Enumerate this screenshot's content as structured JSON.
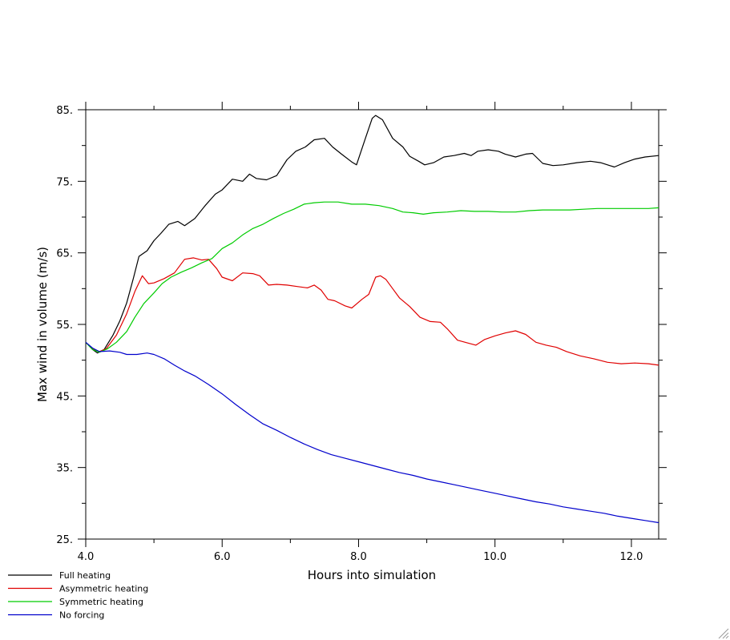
{
  "chart_data": {
    "type": "line",
    "title": "",
    "xlabel": "Hours into simulation",
    "ylabel": "Max wind in volume (m/s)",
    "xlim": [
      4.0,
      12.4
    ],
    "ylim": [
      25,
      85
    ],
    "x_ticks": [
      {
        "value": 4.0,
        "label": "4.0"
      },
      {
        "value": 6.0,
        "label": "6.0"
      },
      {
        "value": 8.0,
        "label": "8.0"
      },
      {
        "value": 10.0,
        "label": "10.0"
      },
      {
        "value": 12.0,
        "label": "12.0"
      }
    ],
    "y_ticks": [
      {
        "value": 25,
        "label": "25."
      },
      {
        "value": 35,
        "label": "35."
      },
      {
        "value": 45,
        "label": "45."
      },
      {
        "value": 55,
        "label": "55."
      },
      {
        "value": 65,
        "label": "65."
      },
      {
        "value": 75,
        "label": "75."
      },
      {
        "value": 85,
        "label": "85."
      }
    ],
    "grid": false,
    "legend_position": "bottom-left",
    "series": [
      {
        "name": "Full heating",
        "color": "#000000",
        "points": [
          [
            4.0,
            52.5
          ],
          [
            4.1,
            51.5
          ],
          [
            4.17,
            51.0
          ],
          [
            4.27,
            51.5
          ],
          [
            4.4,
            53.5
          ],
          [
            4.5,
            55.5
          ],
          [
            4.6,
            58.0
          ],
          [
            4.7,
            61.5
          ],
          [
            4.78,
            64.5
          ],
          [
            4.9,
            65.3
          ],
          [
            5.0,
            66.7
          ],
          [
            5.1,
            67.7
          ],
          [
            5.22,
            69.0
          ],
          [
            5.35,
            69.4
          ],
          [
            5.45,
            68.8
          ],
          [
            5.6,
            69.8
          ],
          [
            5.75,
            71.6
          ],
          [
            5.9,
            73.2
          ],
          [
            6.0,
            73.8
          ],
          [
            6.15,
            75.3
          ],
          [
            6.3,
            75.0
          ],
          [
            6.4,
            76.0
          ],
          [
            6.5,
            75.4
          ],
          [
            6.65,
            75.2
          ],
          [
            6.8,
            75.8
          ],
          [
            6.95,
            78.0
          ],
          [
            7.08,
            79.2
          ],
          [
            7.22,
            79.8
          ],
          [
            7.35,
            80.8
          ],
          [
            7.5,
            81.0
          ],
          [
            7.62,
            79.8
          ],
          [
            7.75,
            78.8
          ],
          [
            7.9,
            77.7
          ],
          [
            7.97,
            77.3
          ],
          [
            8.1,
            81.0
          ],
          [
            8.2,
            83.8
          ],
          [
            8.25,
            84.2
          ],
          [
            8.35,
            83.6
          ],
          [
            8.5,
            81.0
          ],
          [
            8.65,
            79.8
          ],
          [
            8.75,
            78.5
          ],
          [
            8.88,
            77.8
          ],
          [
            8.97,
            77.3
          ],
          [
            9.1,
            77.6
          ],
          [
            9.25,
            78.4
          ],
          [
            9.4,
            78.6
          ],
          [
            9.55,
            78.9
          ],
          [
            9.65,
            78.6
          ],
          [
            9.75,
            79.2
          ],
          [
            9.9,
            79.4
          ],
          [
            10.05,
            79.2
          ],
          [
            10.15,
            78.8
          ],
          [
            10.3,
            78.4
          ],
          [
            10.45,
            78.8
          ],
          [
            10.55,
            78.9
          ],
          [
            10.7,
            77.5
          ],
          [
            10.85,
            77.2
          ],
          [
            11.0,
            77.3
          ],
          [
            11.2,
            77.6
          ],
          [
            11.4,
            77.8
          ],
          [
            11.55,
            77.6
          ],
          [
            11.75,
            77.0
          ],
          [
            11.9,
            77.6
          ],
          [
            12.05,
            78.1
          ],
          [
            12.2,
            78.4
          ],
          [
            12.4,
            78.6
          ]
        ]
      },
      {
        "name": "Asymmetric heating",
        "color": "#e00000",
        "points": [
          [
            4.0,
            52.5
          ],
          [
            4.1,
            51.6
          ],
          [
            4.2,
            51.2
          ],
          [
            4.3,
            51.6
          ],
          [
            4.45,
            53.5
          ],
          [
            4.6,
            56.5
          ],
          [
            4.72,
            59.6
          ],
          [
            4.83,
            61.8
          ],
          [
            4.92,
            60.7
          ],
          [
            5.0,
            60.8
          ],
          [
            5.15,
            61.4
          ],
          [
            5.3,
            62.2
          ],
          [
            5.45,
            64.1
          ],
          [
            5.58,
            64.3
          ],
          [
            5.7,
            64.0
          ],
          [
            5.8,
            64.1
          ],
          [
            5.92,
            62.8
          ],
          [
            6.0,
            61.6
          ],
          [
            6.15,
            61.1
          ],
          [
            6.3,
            62.2
          ],
          [
            6.45,
            62.1
          ],
          [
            6.55,
            61.8
          ],
          [
            6.68,
            60.5
          ],
          [
            6.8,
            60.6
          ],
          [
            6.95,
            60.5
          ],
          [
            7.1,
            60.3
          ],
          [
            7.25,
            60.1
          ],
          [
            7.35,
            60.5
          ],
          [
            7.45,
            59.8
          ],
          [
            7.55,
            58.5
          ],
          [
            7.65,
            58.3
          ],
          [
            7.8,
            57.6
          ],
          [
            7.9,
            57.3
          ],
          [
            8.05,
            58.5
          ],
          [
            8.15,
            59.2
          ],
          [
            8.25,
            61.6
          ],
          [
            8.32,
            61.8
          ],
          [
            8.4,
            61.3
          ],
          [
            8.5,
            60.0
          ],
          [
            8.6,
            58.7
          ],
          [
            8.75,
            57.5
          ],
          [
            8.9,
            56.0
          ],
          [
            9.05,
            55.4
          ],
          [
            9.2,
            55.3
          ],
          [
            9.3,
            54.4
          ],
          [
            9.45,
            52.8
          ],
          [
            9.6,
            52.4
          ],
          [
            9.72,
            52.1
          ],
          [
            9.85,
            52.9
          ],
          [
            10.0,
            53.4
          ],
          [
            10.15,
            53.8
          ],
          [
            10.3,
            54.1
          ],
          [
            10.45,
            53.6
          ],
          [
            10.6,
            52.5
          ],
          [
            10.75,
            52.1
          ],
          [
            10.9,
            51.8
          ],
          [
            11.05,
            51.2
          ],
          [
            11.25,
            50.6
          ],
          [
            11.45,
            50.2
          ],
          [
            11.65,
            49.7
          ],
          [
            11.85,
            49.5
          ],
          [
            12.05,
            49.6
          ],
          [
            12.25,
            49.5
          ],
          [
            12.4,
            49.3
          ]
        ]
      },
      {
        "name": "Symmetric heating",
        "color": "#00cc00",
        "points": [
          [
            4.0,
            52.5
          ],
          [
            4.1,
            51.5
          ],
          [
            4.2,
            51.1
          ],
          [
            4.32,
            51.6
          ],
          [
            4.45,
            52.5
          ],
          [
            4.6,
            54.0
          ],
          [
            4.72,
            56.0
          ],
          [
            4.85,
            57.9
          ],
          [
            5.0,
            59.4
          ],
          [
            5.12,
            60.7
          ],
          [
            5.25,
            61.6
          ],
          [
            5.4,
            62.3
          ],
          [
            5.55,
            62.9
          ],
          [
            5.7,
            63.6
          ],
          [
            5.85,
            64.2
          ],
          [
            6.0,
            65.6
          ],
          [
            6.15,
            66.4
          ],
          [
            6.3,
            67.5
          ],
          [
            6.45,
            68.4
          ],
          [
            6.6,
            69.0
          ],
          [
            6.75,
            69.8
          ],
          [
            6.9,
            70.5
          ],
          [
            7.05,
            71.1
          ],
          [
            7.2,
            71.8
          ],
          [
            7.35,
            72.0
          ],
          [
            7.5,
            72.1
          ],
          [
            7.7,
            72.1
          ],
          [
            7.9,
            71.8
          ],
          [
            8.1,
            71.8
          ],
          [
            8.3,
            71.6
          ],
          [
            8.5,
            71.2
          ],
          [
            8.65,
            70.7
          ],
          [
            8.8,
            70.6
          ],
          [
            8.95,
            70.4
          ],
          [
            9.1,
            70.6
          ],
          [
            9.3,
            70.7
          ],
          [
            9.5,
            70.9
          ],
          [
            9.7,
            70.8
          ],
          [
            9.9,
            70.8
          ],
          [
            10.1,
            70.7
          ],
          [
            10.3,
            70.7
          ],
          [
            10.5,
            70.9
          ],
          [
            10.7,
            71.0
          ],
          [
            10.9,
            71.0
          ],
          [
            11.1,
            71.0
          ],
          [
            11.3,
            71.1
          ],
          [
            11.5,
            71.2
          ],
          [
            11.7,
            71.2
          ],
          [
            11.9,
            71.2
          ],
          [
            12.1,
            71.2
          ],
          [
            12.25,
            71.2
          ],
          [
            12.4,
            71.3
          ]
        ]
      },
      {
        "name": "No forcing",
        "color": "#0000cc",
        "points": [
          [
            4.0,
            52.5
          ],
          [
            4.1,
            51.7
          ],
          [
            4.2,
            51.2
          ],
          [
            4.35,
            51.3
          ],
          [
            4.5,
            51.1
          ],
          [
            4.6,
            50.8
          ],
          [
            4.75,
            50.8
          ],
          [
            4.9,
            51.0
          ],
          [
            5.0,
            50.8
          ],
          [
            5.15,
            50.2
          ],
          [
            5.3,
            49.3
          ],
          [
            5.45,
            48.5
          ],
          [
            5.6,
            47.8
          ],
          [
            5.8,
            46.6
          ],
          [
            6.0,
            45.3
          ],
          [
            6.2,
            43.8
          ],
          [
            6.4,
            42.4
          ],
          [
            6.6,
            41.1
          ],
          [
            6.8,
            40.2
          ],
          [
            7.0,
            39.2
          ],
          [
            7.2,
            38.3
          ],
          [
            7.4,
            37.5
          ],
          [
            7.6,
            36.8
          ],
          [
            7.8,
            36.3
          ],
          [
            8.0,
            35.8
          ],
          [
            8.2,
            35.3
          ],
          [
            8.4,
            34.8
          ],
          [
            8.6,
            34.3
          ],
          [
            8.8,
            33.9
          ],
          [
            9.0,
            33.4
          ],
          [
            9.2,
            33.0
          ],
          [
            9.4,
            32.6
          ],
          [
            9.6,
            32.2
          ],
          [
            9.8,
            31.8
          ],
          [
            10.0,
            31.4
          ],
          [
            10.2,
            31.0
          ],
          [
            10.4,
            30.6
          ],
          [
            10.6,
            30.2
          ],
          [
            10.8,
            29.9
          ],
          [
            11.0,
            29.5
          ],
          [
            11.2,
            29.2
          ],
          [
            11.4,
            28.9
          ],
          [
            11.6,
            28.6
          ],
          [
            11.8,
            28.2
          ],
          [
            12.0,
            27.9
          ],
          [
            12.2,
            27.6
          ],
          [
            12.4,
            27.3
          ]
        ]
      }
    ]
  }
}
